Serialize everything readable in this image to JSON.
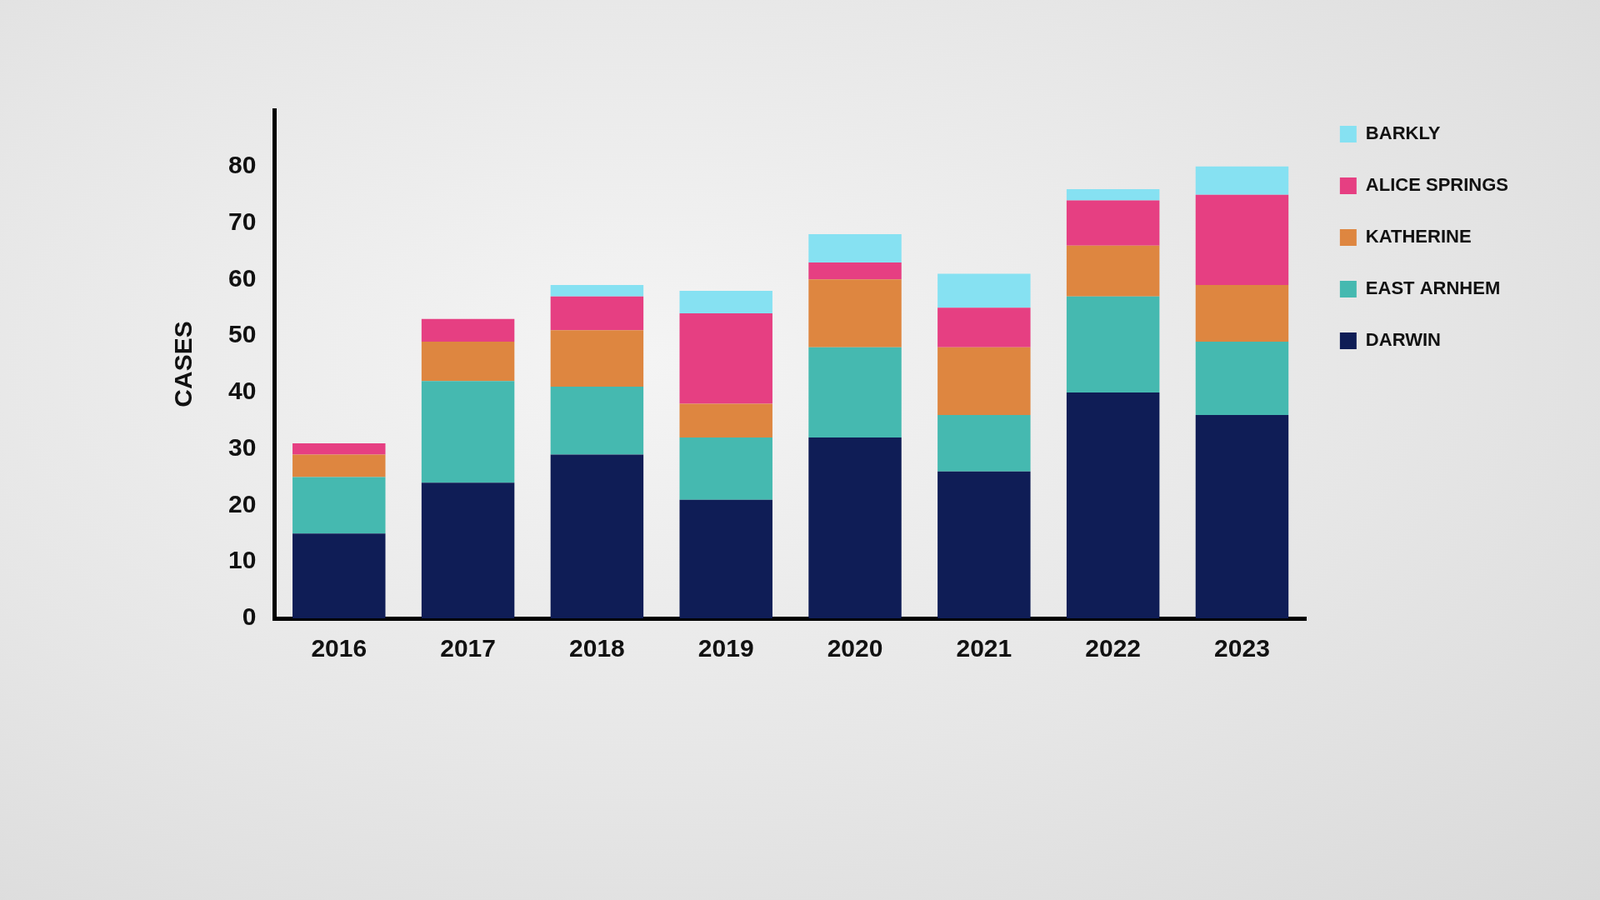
{
  "chart_data": {
    "type": "bar",
    "stacked": true,
    "y_label": "CASES",
    "categories": [
      "2016",
      "2017",
      "2018",
      "2019",
      "2020",
      "2021",
      "2022",
      "2023"
    ],
    "series": [
      {
        "name": "DARWIN",
        "color": "#0f1d56",
        "values": [
          15,
          24,
          29,
          21,
          32,
          26,
          40,
          36
        ]
      },
      {
        "name": "EAST ARNHEM",
        "color": "#45b9b0",
        "values": [
          10,
          18,
          12,
          11,
          16,
          10,
          17,
          13
        ]
      },
      {
        "name": "KATHERINE",
        "color": "#de8640",
        "values": [
          4,
          7,
          10,
          6,
          12,
          12,
          9,
          10
        ]
      },
      {
        "name": "ALICE SPRINGS",
        "color": "#e63f82",
        "values": [
          2,
          4,
          6,
          16,
          3,
          7,
          8,
          16
        ]
      },
      {
        "name": "BARKLY",
        "color": "#86e1f2",
        "values": [
          0,
          0,
          2,
          4,
          5,
          6,
          2,
          5
        ]
      }
    ],
    "ylim": [
      0,
      90
    ],
    "yticks": [
      0,
      10,
      20,
      30,
      40,
      50,
      60,
      70,
      80
    ],
    "grid": false,
    "legend": "right"
  }
}
